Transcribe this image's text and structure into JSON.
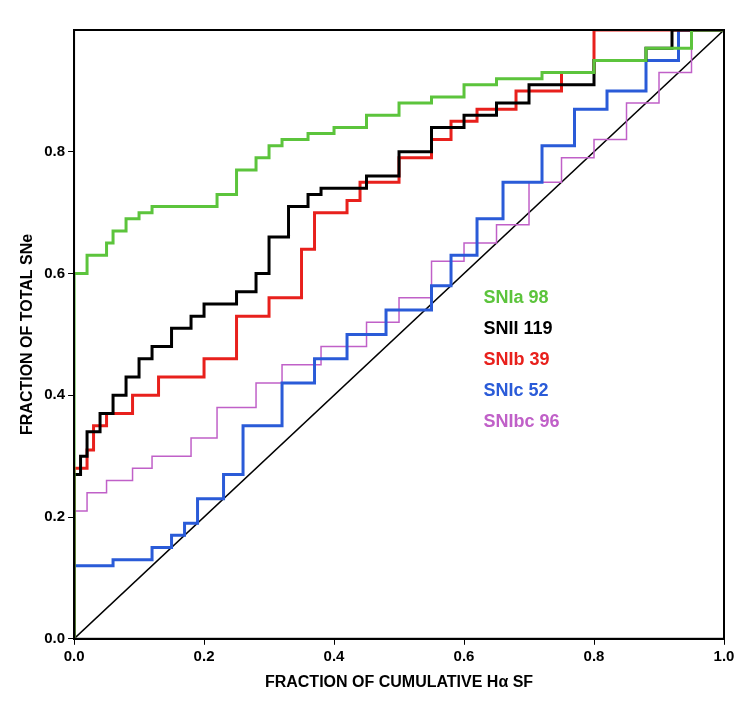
{
  "chart_data": {
    "type": "line",
    "x_label": "FRACTION OF CUMULATIVE Hα SF",
    "y_label": "FRACTION OF TOTAL SNe",
    "xlim": [
      0,
      1
    ],
    "ylim": [
      0,
      1
    ],
    "xticks": [
      {
        "value": 0,
        "label": "0.0"
      },
      {
        "value": 0.2,
        "label": "0.2"
      },
      {
        "value": 0.4,
        "label": "0.4"
      },
      {
        "value": 0.6,
        "label": "0.6"
      },
      {
        "value": 0.8,
        "label": "0.8"
      },
      {
        "value": 1,
        "label": "1.0"
      }
    ],
    "yticks": [
      {
        "value": 0,
        "label": "0.0"
      },
      {
        "value": 0.2,
        "label": "0.2"
      },
      {
        "value": 0.4,
        "label": "0.4"
      },
      {
        "value": 0.6,
        "label": "0.6"
      },
      {
        "value": 0.8,
        "label": "0.8"
      }
    ],
    "grid": false,
    "legend": "right",
    "series": [
      {
        "name": "SNIa 98",
        "color": "#5cc43c",
        "line_style": "steps",
        "x": [
          0,
          0,
          0.02,
          0.05,
          0.06,
          0.08,
          0.1,
          0.12,
          0.22,
          0.25,
          0.28,
          0.3,
          0.32,
          0.36,
          0.4,
          0.45,
          0.5,
          0.55,
          0.6,
          0.65,
          0.72,
          0.8,
          0.88,
          0.95,
          1.0
        ],
        "values": [
          0,
          0.58,
          0.6,
          0.63,
          0.65,
          0.67,
          0.69,
          0.7,
          0.71,
          0.73,
          0.77,
          0.79,
          0.81,
          0.82,
          0.83,
          0.84,
          0.86,
          0.88,
          0.89,
          0.91,
          0.92,
          0.93,
          0.95,
          0.97,
          1.0
        ]
      },
      {
        "name": "SNII 119",
        "color": "#000000",
        "line_style": "steps",
        "x": [
          0,
          0,
          0.01,
          0.02,
          0.04,
          0.06,
          0.08,
          0.1,
          0.12,
          0.15,
          0.18,
          0.2,
          0.25,
          0.28,
          0.3,
          0.33,
          0.36,
          0.38,
          0.45,
          0.5,
          0.55,
          0.6,
          0.65,
          0.7,
          0.8,
          0.88,
          0.92,
          1.0
        ],
        "values": [
          0,
          0.25,
          0.27,
          0.3,
          0.34,
          0.37,
          0.4,
          0.43,
          0.46,
          0.48,
          0.51,
          0.53,
          0.55,
          0.57,
          0.6,
          0.66,
          0.71,
          0.73,
          0.74,
          0.76,
          0.8,
          0.84,
          0.86,
          0.88,
          0.91,
          0.95,
          0.97,
          1.0
        ]
      },
      {
        "name": "SNIb 39",
        "color": "#e8201c",
        "line_style": "steps",
        "x": [
          0,
          0,
          0.02,
          0.03,
          0.05,
          0.09,
          0.13,
          0.2,
          0.25,
          0.3,
          0.35,
          0.37,
          0.42,
          0.44,
          0.5,
          0.55,
          0.58,
          0.62,
          0.68,
          0.75,
          0.8,
          0.85,
          1.0
        ],
        "values": [
          0,
          0.25,
          0.28,
          0.31,
          0.35,
          0.37,
          0.4,
          0.43,
          0.46,
          0.53,
          0.56,
          0.64,
          0.7,
          0.72,
          0.75,
          0.79,
          0.82,
          0.85,
          0.87,
          0.9,
          0.93,
          1.0,
          1.0
        ]
      },
      {
        "name": "SNIc 52",
        "color": "#2a5bd8",
        "line_style": "steps",
        "x": [
          0,
          0,
          0.06,
          0.12,
          0.15,
          0.17,
          0.19,
          0.23,
          0.26,
          0.32,
          0.37,
          0.42,
          0.48,
          0.55,
          0.58,
          0.62,
          0.66,
          0.72,
          0.77,
          0.82,
          0.88,
          0.93,
          1.0
        ],
        "values": [
          0,
          0.1,
          0.12,
          0.13,
          0.15,
          0.17,
          0.19,
          0.23,
          0.27,
          0.35,
          0.42,
          0.46,
          0.5,
          0.54,
          0.58,
          0.63,
          0.69,
          0.75,
          0.81,
          0.87,
          0.9,
          0.95,
          1.0
        ]
      },
      {
        "name": "SNIbc 96",
        "color": "#c060c8",
        "line_style": "steps",
        "x": [
          0,
          0,
          0.02,
          0.05,
          0.09,
          0.12,
          0.18,
          0.22,
          0.28,
          0.32,
          0.38,
          0.45,
          0.5,
          0.55,
          0.6,
          0.65,
          0.7,
          0.75,
          0.8,
          0.85,
          0.9,
          0.95,
          1.0
        ],
        "values": [
          0,
          0.18,
          0.21,
          0.24,
          0.26,
          0.28,
          0.3,
          0.33,
          0.38,
          0.42,
          0.45,
          0.48,
          0.52,
          0.56,
          0.62,
          0.65,
          0.68,
          0.75,
          0.79,
          0.82,
          0.88,
          0.93,
          1.0
        ]
      },
      {
        "color": "#000000",
        "line_style": "solid",
        "x": [
          0,
          1
        ],
        "values": [
          0,
          1
        ]
      }
    ]
  }
}
